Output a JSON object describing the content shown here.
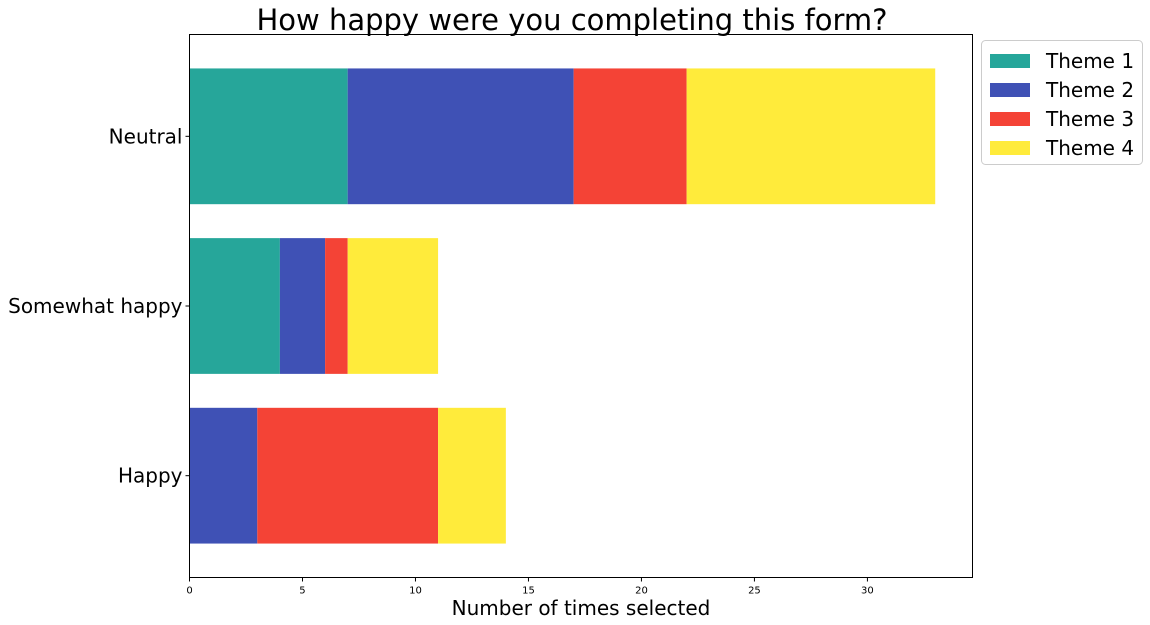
{
  "chart_data": {
    "type": "bar",
    "orientation": "horizontal",
    "stacked": true,
    "title": "How happy were you completing this form?",
    "xlabel": "Number of times selected",
    "ylabel": "",
    "categories": [
      "Neutral",
      "Somewhat happy",
      "Happy"
    ],
    "series": [
      {
        "name": "Theme 1",
        "color": "#26a69a",
        "values": [
          7,
          4,
          0
        ]
      },
      {
        "name": "Theme 2",
        "color": "#3f51b5",
        "values": [
          10,
          2,
          3
        ]
      },
      {
        "name": "Theme 3",
        "color": "#f44336",
        "values": [
          5,
          1,
          8
        ]
      },
      {
        "name": "Theme 4",
        "color": "#ffeb3b",
        "values": [
          11,
          4,
          3
        ]
      }
    ],
    "xlim": [
      0,
      34.65
    ],
    "xticks": [
      0,
      5,
      10,
      15,
      20,
      25,
      30
    ],
    "xtick_labels": [
      "0",
      "5",
      "10",
      "15",
      "20",
      "25",
      "30"
    ],
    "grid": false,
    "legend_position": "outside top-right"
  }
}
